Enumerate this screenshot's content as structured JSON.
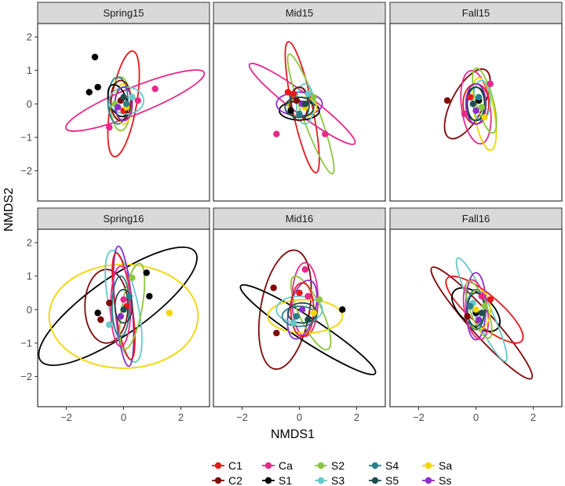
{
  "chart_data": {
    "type": "scatter",
    "xlabel": "NMDS1",
    "ylabel": "NMDS2",
    "xlim": [
      -3.0,
      3.0
    ],
    "ylim": [
      -2.9,
      2.4
    ],
    "x_ticks": [
      -2,
      0,
      2
    ],
    "y_ticks": [
      -2,
      -1,
      0,
      1,
      2
    ],
    "x_tick_labels": [
      "−2",
      "0",
      "2"
    ],
    "y_tick_labels": [
      "−2",
      "−1",
      "0",
      "1",
      "2"
    ],
    "grid": false,
    "legend_position": "bottom",
    "groups": [
      {
        "id": "C1",
        "label": "C1",
        "color": "#e41a1c"
      },
      {
        "id": "Ca",
        "label": "Ca",
        "color": "#e7298a"
      },
      {
        "id": "S2",
        "label": "S2",
        "color": "#8cc63f"
      },
      {
        "id": "S4",
        "label": "S4",
        "color": "#2a7f8a"
      },
      {
        "id": "Sa",
        "label": "Sa",
        "color": "#f2d600"
      },
      {
        "id": "C2",
        "label": "C2",
        "color": "#7f0a0a"
      },
      {
        "id": "S1",
        "label": "S1",
        "color": "#000000"
      },
      {
        "id": "S3",
        "label": "S3",
        "color": "#66c9c9"
      },
      {
        "id": "S5",
        "label": "S5",
        "color": "#1f4d4d"
      },
      {
        "id": "Ss",
        "label": "Ss",
        "color": "#8c2fc9"
      }
    ],
    "panels": [
      {
        "title": "Spring15",
        "ellipses": [
          {
            "group": "C1",
            "cx": 0.0,
            "cy": 0.0,
            "rx": 0.45,
            "ry": 1.6,
            "angle": -10
          },
          {
            "group": "Ca",
            "cx": 0.4,
            "cy": 0.1,
            "rx": 2.6,
            "ry": 0.4,
            "angle": 22
          },
          {
            "group": "S2",
            "cx": -0.1,
            "cy": 0.0,
            "rx": 0.35,
            "ry": 0.8,
            "angle": 0
          },
          {
            "group": "S4",
            "cx": -0.2,
            "cy": 0.1,
            "rx": 0.35,
            "ry": 0.7,
            "angle": 0
          },
          {
            "group": "Sa",
            "cx": 0.0,
            "cy": 0.0,
            "rx": 0.3,
            "ry": 0.6,
            "angle": 0
          },
          {
            "group": "C2",
            "cx": -0.1,
            "cy": 0.1,
            "rx": 0.35,
            "ry": 0.6,
            "angle": 0
          },
          {
            "group": "S1",
            "cx": -0.2,
            "cy": 0.1,
            "rx": 0.3,
            "ry": 0.5,
            "angle": 20
          },
          {
            "group": "S3",
            "cx": 0.1,
            "cy": 0.1,
            "rx": 0.6,
            "ry": 0.4,
            "angle": 0
          },
          {
            "group": "S5",
            "cx": 0.0,
            "cy": 0.0,
            "rx": 0.3,
            "ry": 0.5,
            "angle": 0
          },
          {
            "group": "Ss",
            "cx": 0.0,
            "cy": 0.0,
            "rx": 0.3,
            "ry": 0.5,
            "angle": 0
          }
        ],
        "points": [
          {
            "group": "S1",
            "x": -1.0,
            "y": 1.4
          },
          {
            "group": "S1",
            "x": -0.9,
            "y": 0.5
          },
          {
            "group": "S1",
            "x": -1.2,
            "y": 0.35
          },
          {
            "group": "Ca",
            "x": 1.1,
            "y": 0.45
          },
          {
            "group": "Ca",
            "x": 0.5,
            "y": 0.1
          },
          {
            "group": "Ca",
            "x": -0.5,
            "y": -0.7
          },
          {
            "group": "C1",
            "x": 0.0,
            "y": -0.2
          },
          {
            "group": "S3",
            "x": 0.3,
            "y": 0.2
          },
          {
            "group": "Sa",
            "x": 0.1,
            "y": -0.1
          },
          {
            "group": "S2",
            "x": -0.3,
            "y": 0.0
          },
          {
            "group": "C2",
            "x": -0.1,
            "y": 0.1
          },
          {
            "group": "S5",
            "x": 0.0,
            "y": 0.2
          },
          {
            "group": "Ss",
            "x": -0.2,
            "y": -0.1
          },
          {
            "group": "S4",
            "x": 0.1,
            "y": 0.0
          }
        ]
      },
      {
        "title": "Mid15",
        "ellipses": [
          {
            "group": "C1",
            "cx": 0.1,
            "cy": -0.1,
            "rx": 0.35,
            "ry": 2.0,
            "angle": 12
          },
          {
            "group": "Ca",
            "cx": 0.1,
            "cy": 0.0,
            "rx": 2.3,
            "ry": 0.3,
            "angle": -37
          },
          {
            "group": "S2",
            "cx": 0.4,
            "cy": -0.3,
            "rx": 0.3,
            "ry": 1.9,
            "angle": 20
          },
          {
            "group": "S1",
            "cx": 0.0,
            "cy": -0.2,
            "rx": 0.7,
            "ry": 0.28,
            "angle": 0
          },
          {
            "group": "Ss",
            "cx": 0.0,
            "cy": 0.0,
            "rx": 0.8,
            "ry": 0.35,
            "angle": 0
          },
          {
            "group": "Sa",
            "cx": 0.1,
            "cy": -0.1,
            "rx": 0.5,
            "ry": 0.3,
            "angle": 0
          },
          {
            "group": "S3",
            "cx": 0.2,
            "cy": 0.0,
            "rx": 0.3,
            "ry": 0.6,
            "angle": 0
          },
          {
            "group": "S4",
            "cx": 0.0,
            "cy": 0.0,
            "rx": 0.35,
            "ry": 0.5,
            "angle": 0
          },
          {
            "group": "C2",
            "cx": 0.0,
            "cy": 0.0,
            "rx": 0.3,
            "ry": 0.5,
            "angle": 0
          },
          {
            "group": "S5",
            "cx": 0.0,
            "cy": -0.1,
            "rx": 0.5,
            "ry": 0.3,
            "angle": 0
          }
        ],
        "points": [
          {
            "group": "C1",
            "x": -0.4,
            "y": 0.35
          },
          {
            "group": "C1",
            "x": -0.2,
            "y": 0.3
          },
          {
            "group": "Ca",
            "x": 0.9,
            "y": -0.9
          },
          {
            "group": "Ca",
            "x": -0.8,
            "y": -0.9
          },
          {
            "group": "S1",
            "x": -0.3,
            "y": -0.2
          },
          {
            "group": "Sa",
            "x": 0.2,
            "y": -0.1
          },
          {
            "group": "S2",
            "x": 0.5,
            "y": 0.2
          },
          {
            "group": "Ss",
            "x": 0.1,
            "y": 0.0
          },
          {
            "group": "S3",
            "x": 0.3,
            "y": 0.3
          },
          {
            "group": "C2",
            "x": -0.1,
            "y": 0.1
          },
          {
            "group": "S4",
            "x": 0.0,
            "y": -0.3
          },
          {
            "group": "S5",
            "x": 0.2,
            "y": 0.0
          }
        ]
      },
      {
        "title": "Fall15",
        "ellipses": [
          {
            "group": "C2",
            "cx": -0.3,
            "cy": 0.0,
            "rx": 0.55,
            "ry": 1.15,
            "angle": -28
          },
          {
            "group": "Ca",
            "cx": 0.0,
            "cy": -0.1,
            "rx": 0.5,
            "ry": 1.1,
            "angle": 8
          },
          {
            "group": "Sa",
            "cx": 0.3,
            "cy": -0.3,
            "rx": 0.35,
            "ry": 1.1,
            "angle": 10
          },
          {
            "group": "S2",
            "cx": 0.3,
            "cy": 0.1,
            "rx": 0.3,
            "ry": 1.0,
            "angle": 15
          },
          {
            "group": "C1",
            "cx": 0.0,
            "cy": 0.0,
            "rx": 0.45,
            "ry": 0.6,
            "angle": 0
          },
          {
            "group": "S1",
            "cx": 0.0,
            "cy": 0.0,
            "rx": 0.35,
            "ry": 0.5,
            "angle": 0
          },
          {
            "group": "S3",
            "cx": 0.2,
            "cy": 0.1,
            "rx": 0.3,
            "ry": 0.6,
            "angle": 0
          },
          {
            "group": "S4",
            "cx": 0.0,
            "cy": 0.0,
            "rx": 0.3,
            "ry": 0.5,
            "angle": 0
          },
          {
            "group": "S5",
            "cx": 0.0,
            "cy": 0.0,
            "rx": 0.3,
            "ry": 0.5,
            "angle": 0
          },
          {
            "group": "Ss",
            "cx": 0.0,
            "cy": 0.0,
            "rx": 0.35,
            "ry": 0.6,
            "angle": 0
          }
        ],
        "points": [
          {
            "group": "C2",
            "x": -1.0,
            "y": 0.1
          },
          {
            "group": "Ca",
            "x": 0.5,
            "y": 0.6
          },
          {
            "group": "Ca",
            "x": -0.4,
            "y": -0.3
          },
          {
            "group": "Sa",
            "x": 0.3,
            "y": -0.4
          },
          {
            "group": "S1",
            "x": 0.1,
            "y": 0.1
          },
          {
            "group": "C1",
            "x": -0.2,
            "y": 0.2
          },
          {
            "group": "S2",
            "x": 0.2,
            "y": -0.1
          },
          {
            "group": "Ss",
            "x": 0.0,
            "y": -0.2
          },
          {
            "group": "S4",
            "x": 0.1,
            "y": 0.2
          },
          {
            "group": "S5",
            "x": -0.1,
            "y": 0.0
          }
        ]
      },
      {
        "title": "Spring16",
        "ellipses": [
          {
            "group": "S1",
            "cx": -0.2,
            "cy": 0.1,
            "rx": 3.3,
            "ry": 0.85,
            "angle": 35
          },
          {
            "group": "Sa",
            "cx": 0.0,
            "cy": -0.2,
            "rx": 2.6,
            "ry": 1.55,
            "angle": 0
          },
          {
            "group": "C2",
            "cx": -0.6,
            "cy": 0.1,
            "rx": 0.75,
            "ry": 1.1,
            "angle": 0
          },
          {
            "group": "S3",
            "cx": 0.0,
            "cy": 0.1,
            "rx": 0.5,
            "ry": 1.7,
            "angle": 12
          },
          {
            "group": "Ss",
            "cx": 0.0,
            "cy": 0.1,
            "rx": 0.3,
            "ry": 1.8,
            "angle": 5
          },
          {
            "group": "C1",
            "cx": 0.0,
            "cy": 0.1,
            "rx": 0.3,
            "ry": 1.6,
            "angle": 8
          },
          {
            "group": "S2",
            "cx": 0.3,
            "cy": 0.1,
            "rx": 0.35,
            "ry": 1.3,
            "angle": -10
          },
          {
            "group": "Ca",
            "cx": -0.1,
            "cy": 0.1,
            "rx": 0.35,
            "ry": 1.2,
            "angle": 0
          },
          {
            "group": "S4",
            "cx": -0.1,
            "cy": 0.1,
            "rx": 0.3,
            "ry": 0.9,
            "angle": 0
          },
          {
            "group": "S5",
            "cx": 0.0,
            "cy": 0.1,
            "rx": 0.3,
            "ry": 0.5,
            "angle": 0
          }
        ],
        "points": [
          {
            "group": "S1",
            "x": 0.8,
            "y": 1.1
          },
          {
            "group": "S1",
            "x": 0.9,
            "y": 0.4
          },
          {
            "group": "S1",
            "x": -0.9,
            "y": -0.1
          },
          {
            "group": "Sa",
            "x": 1.6,
            "y": -0.1
          },
          {
            "group": "S2",
            "x": 0.3,
            "y": 0.95
          },
          {
            "group": "C2",
            "x": -0.8,
            "y": -0.3
          },
          {
            "group": "C2",
            "x": -0.5,
            "y": 0.2
          },
          {
            "group": "S3",
            "x": -0.5,
            "y": -0.45
          },
          {
            "group": "Ca",
            "x": 0.0,
            "y": 0.3
          },
          {
            "group": "C1",
            "x": 0.1,
            "y": 0.1
          },
          {
            "group": "Ss",
            "x": -0.1,
            "y": -0.2
          },
          {
            "group": "S4",
            "x": 0.2,
            "y": 0.4
          },
          {
            "group": "S5",
            "x": 0.0,
            "y": 0.0
          }
        ]
      },
      {
        "title": "Mid16",
        "ellipses": [
          {
            "group": "C2",
            "cx": -0.5,
            "cy": 0.0,
            "rx": 0.85,
            "ry": 1.8,
            "angle": -10
          },
          {
            "group": "S1",
            "cx": 0.3,
            "cy": -0.6,
            "rx": 2.8,
            "ry": 0.35,
            "angle": -33
          },
          {
            "group": "Ca",
            "cx": 0.2,
            "cy": 0.3,
            "rx": 0.45,
            "ry": 1.1,
            "angle": 0
          },
          {
            "group": "Sa",
            "cx": 0.2,
            "cy": -0.2,
            "rx": 1.3,
            "ry": 0.5,
            "angle": 0
          },
          {
            "group": "S2",
            "cx": 0.4,
            "cy": -0.1,
            "rx": 0.4,
            "ry": 1.2,
            "angle": 25
          },
          {
            "group": "Ss",
            "cx": 0.1,
            "cy": 0.0,
            "rx": 0.45,
            "ry": 0.9,
            "angle": -15
          },
          {
            "group": "S3",
            "cx": 0.0,
            "cy": 0.0,
            "rx": 0.8,
            "ry": 0.4,
            "angle": 0
          },
          {
            "group": "C1",
            "cx": 0.1,
            "cy": 0.0,
            "rx": 0.4,
            "ry": 0.8,
            "angle": 0
          },
          {
            "group": "S4",
            "cx": 0.0,
            "cy": -0.2,
            "rx": 0.6,
            "ry": 0.3,
            "angle": 0
          },
          {
            "group": "S5",
            "cx": 0.1,
            "cy": -0.1,
            "rx": 0.5,
            "ry": 0.3,
            "angle": 0
          }
        ],
        "points": [
          {
            "group": "C2",
            "x": -0.9,
            "y": 0.65
          },
          {
            "group": "C2",
            "x": -0.8,
            "y": -0.7
          },
          {
            "group": "S1",
            "x": 1.5,
            "y": 0.0
          },
          {
            "group": "C1",
            "x": 0.0,
            "y": 0.5
          },
          {
            "group": "Ca",
            "x": 0.2,
            "y": 1.2
          },
          {
            "group": "Ca",
            "x": 0.3,
            "y": 0.4
          },
          {
            "group": "S3",
            "x": -0.2,
            "y": -0.4
          },
          {
            "group": "Sa",
            "x": 0.5,
            "y": -0.1
          },
          {
            "group": "S2",
            "x": 0.7,
            "y": 0.3
          },
          {
            "group": "Ss",
            "x": 0.1,
            "y": 0.0
          },
          {
            "group": "S4",
            "x": -0.1,
            "y": -0.2
          },
          {
            "group": "S5",
            "x": 0.3,
            "y": -0.3
          }
        ]
      },
      {
        "title": "Fall16",
        "ellipses": [
          {
            "group": "C2",
            "cx": 0.2,
            "cy": -0.4,
            "rx": 2.6,
            "ry": 0.35,
            "angle": -48
          },
          {
            "group": "C1",
            "cx": 0.3,
            "cy": 0.0,
            "rx": 1.7,
            "ry": 0.45,
            "angle": -40
          },
          {
            "group": "S1",
            "cx": 0.0,
            "cy": 0.0,
            "rx": 1.0,
            "ry": 0.45,
            "angle": -40
          },
          {
            "group": "S3",
            "cx": 0.2,
            "cy": 0.0,
            "rx": 0.3,
            "ry": 1.7,
            "angle": 25
          },
          {
            "group": "Ss",
            "cx": 0.0,
            "cy": 0.1,
            "rx": 0.35,
            "ry": 1.0,
            "angle": 0
          },
          {
            "group": "Ca",
            "cx": 0.0,
            "cy": 0.0,
            "rx": 0.4,
            "ry": 0.9,
            "angle": 10
          },
          {
            "group": "S2",
            "cx": 0.1,
            "cy": 0.0,
            "rx": 0.3,
            "ry": 0.9,
            "angle": 20
          },
          {
            "group": "Sa",
            "cx": 0.1,
            "cy": 0.0,
            "rx": 0.4,
            "ry": 0.6,
            "angle": 0
          },
          {
            "group": "S4",
            "cx": 0.0,
            "cy": 0.0,
            "rx": 0.3,
            "ry": 0.6,
            "angle": 0
          },
          {
            "group": "S5",
            "cx": 0.0,
            "cy": 0.0,
            "rx": 0.3,
            "ry": 0.5,
            "angle": 0
          }
        ],
        "points": [
          {
            "group": "C2",
            "x": -0.3,
            "y": -0.2
          },
          {
            "group": "C1",
            "x": 0.5,
            "y": 0.3
          },
          {
            "group": "Ca",
            "x": 0.2,
            "y": 0.4
          },
          {
            "group": "S1",
            "x": 0.0,
            "y": -0.1
          },
          {
            "group": "S3",
            "x": -0.1,
            "y": 0.2
          },
          {
            "group": "Ss",
            "x": 0.1,
            "y": -0.3
          },
          {
            "group": "S2",
            "x": 0.3,
            "y": 0.1
          },
          {
            "group": "Sa",
            "x": 0.0,
            "y": 0.0
          },
          {
            "group": "S4",
            "x": -0.2,
            "y": 0.1
          },
          {
            "group": "S5",
            "x": 0.2,
            "y": -0.1
          }
        ]
      }
    ]
  }
}
